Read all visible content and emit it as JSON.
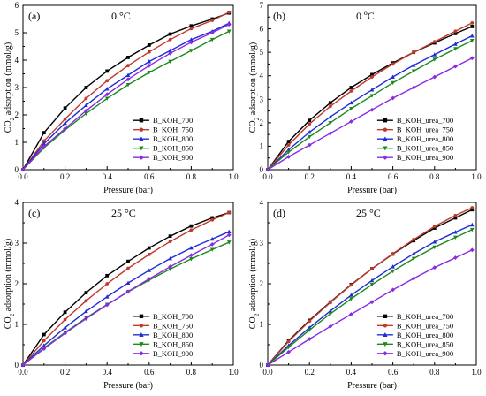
{
  "chart_data": [
    {
      "panel_label": "(a)",
      "title": "0 °C",
      "type": "line",
      "xlabel": "Pressure (bar)",
      "ylabel": "CO2 adsorption (mmol/g)",
      "ylabel_parts": [
        "CO",
        "2",
        " adsorption (mmol/g)"
      ],
      "xlim": [
        0,
        1.0
      ],
      "ylim": [
        0,
        6
      ],
      "xticks": [
        0.0,
        0.2,
        0.4,
        0.6,
        0.8,
        1.0
      ],
      "xtick_labels": [
        "0.0",
        "0.2",
        "0.4",
        "0.6",
        "0.8",
        "1.0"
      ],
      "yticks": [
        0,
        1,
        2,
        3,
        4,
        5,
        6
      ],
      "ytick_labels": [
        "0",
        "1",
        "2",
        "3",
        "4",
        "5",
        "6"
      ],
      "legend_position": "bottom-right",
      "x": [
        0,
        0.1,
        0.2,
        0.3,
        0.4,
        0.5,
        0.6,
        0.7,
        0.8,
        0.9,
        0.98
      ],
      "series": [
        {
          "name": "B_KOH_700",
          "color": "#000000",
          "marker": "square",
          "values": [
            0,
            1.35,
            2.25,
            3.0,
            3.6,
            4.1,
            4.55,
            4.95,
            5.25,
            5.5,
            5.72
          ]
        },
        {
          "name": "B_KOH_750",
          "color": "#c0392b",
          "marker": "circle",
          "values": [
            0,
            1.05,
            1.85,
            2.6,
            3.25,
            3.8,
            4.3,
            4.75,
            5.15,
            5.45,
            5.75
          ]
        },
        {
          "name": "B_KOH_800",
          "color": "#1f2bd6",
          "marker": "triangle-up",
          "values": [
            0,
            0.95,
            1.7,
            2.35,
            2.95,
            3.45,
            3.95,
            4.35,
            4.75,
            5.05,
            5.35
          ]
        },
        {
          "name": "B_KOH_850",
          "color": "#1a8a1a",
          "marker": "triangle-down",
          "values": [
            0,
            0.8,
            1.45,
            2.05,
            2.6,
            3.1,
            3.55,
            3.95,
            4.35,
            4.75,
            5.05
          ]
        },
        {
          "name": "B_KOH_900",
          "color": "#8a2be2",
          "marker": "diamond",
          "values": [
            0,
            0.85,
            1.5,
            2.15,
            2.75,
            3.3,
            3.8,
            4.25,
            4.65,
            5.0,
            5.3
          ]
        }
      ]
    },
    {
      "panel_label": "(b)",
      "title": "0 ºC",
      "type": "line",
      "xlabel": "Pressure (bar)",
      "ylabel": "CO2 adsorption (mmol/g)",
      "ylabel_parts": [
        "CO",
        "2",
        " adsorption (mmol/g)"
      ],
      "xlim": [
        0,
        1.0
      ],
      "ylim": [
        0,
        7
      ],
      "xticks": [
        0.0,
        0.2,
        0.4,
        0.6,
        0.8,
        1.0
      ],
      "xtick_labels": [
        "0.0",
        "0.2",
        "0.4",
        "0.6",
        "0.8",
        "1.0"
      ],
      "yticks": [
        0,
        1,
        2,
        3,
        4,
        5,
        6,
        7
      ],
      "ytick_labels": [
        "0",
        "1",
        "2",
        "3",
        "4",
        "5",
        "6",
        "7"
      ],
      "legend_position": "bottom-right",
      "x": [
        0,
        0.1,
        0.2,
        0.3,
        0.4,
        0.5,
        0.6,
        0.7,
        0.8,
        0.9,
        0.98
      ],
      "series": [
        {
          "name": "B_KOH_urea_700",
          "color": "#000000",
          "marker": "square",
          "values": [
            0,
            1.2,
            2.1,
            2.85,
            3.5,
            4.05,
            4.55,
            5.0,
            5.4,
            5.8,
            6.1
          ]
        },
        {
          "name": "B_KOH_urea_750",
          "color": "#c0392b",
          "marker": "circle",
          "values": [
            0,
            1.05,
            1.95,
            2.7,
            3.35,
            3.95,
            4.5,
            5.0,
            5.45,
            5.9,
            6.25
          ]
        },
        {
          "name": "B_KOH_urea_800",
          "color": "#1f2bd6",
          "marker": "triangle-up",
          "values": [
            0,
            0.85,
            1.6,
            2.25,
            2.85,
            3.4,
            3.95,
            4.45,
            4.9,
            5.35,
            5.7
          ]
        },
        {
          "name": "B_KOH_urea_850",
          "color": "#1a8a1a",
          "marker": "triangle-down",
          "values": [
            0,
            0.75,
            1.4,
            2.0,
            2.6,
            3.15,
            3.7,
            4.2,
            4.7,
            5.15,
            5.5
          ]
        },
        {
          "name": "B_KOH_urea_900",
          "color": "#8a2be2",
          "marker": "diamond",
          "values": [
            0,
            0.55,
            1.05,
            1.55,
            2.05,
            2.55,
            3.05,
            3.5,
            3.95,
            4.4,
            4.75
          ]
        }
      ]
    },
    {
      "panel_label": "(c)",
      "title": "25 °C",
      "type": "line",
      "xlabel": "Pressure (bar)",
      "ylabel": "CO2 adsorption (mmol/g)",
      "ylabel_parts": [
        "CO",
        "2",
        " adsorption (mmol/g)"
      ],
      "xlim": [
        0,
        1.0
      ],
      "ylim": [
        0,
        4
      ],
      "xticks": [
        0.0,
        0.2,
        0.4,
        0.6,
        0.8,
        1.0
      ],
      "xtick_labels": [
        "0.0",
        "0.2",
        "0.4",
        "0.6",
        "0.8",
        "1.0"
      ],
      "yticks": [
        0,
        1,
        2,
        3,
        4
      ],
      "ytick_labels": [
        "0",
        "1",
        "2",
        "3",
        "4"
      ],
      "legend_position": "bottom-right",
      "x": [
        0,
        0.1,
        0.2,
        0.3,
        0.4,
        0.5,
        0.6,
        0.7,
        0.8,
        0.9,
        0.98
      ],
      "series": [
        {
          "name": "B_KOH_700",
          "color": "#000000",
          "marker": "square",
          "values": [
            0,
            0.75,
            1.3,
            1.78,
            2.2,
            2.55,
            2.88,
            3.17,
            3.42,
            3.62,
            3.75
          ]
        },
        {
          "name": "B_KOH_750",
          "color": "#c0392b",
          "marker": "circle",
          "values": [
            0,
            0.6,
            1.12,
            1.58,
            2.0,
            2.38,
            2.72,
            3.04,
            3.32,
            3.57,
            3.75
          ]
        },
        {
          "name": "B_KOH_800",
          "color": "#1f2bd6",
          "marker": "triangle-up",
          "values": [
            0,
            0.48,
            0.92,
            1.32,
            1.68,
            2.02,
            2.33,
            2.62,
            2.88,
            3.1,
            3.28
          ]
        },
        {
          "name": "B_KOH_850",
          "color": "#1a8a1a",
          "marker": "triangle-down",
          "values": [
            0,
            0.42,
            0.8,
            1.16,
            1.49,
            1.8,
            2.09,
            2.36,
            2.61,
            2.84,
            3.02
          ]
        },
        {
          "name": "B_KOH_900",
          "color": "#8a2be2",
          "marker": "diamond",
          "values": [
            0,
            0.4,
            0.78,
            1.14,
            1.48,
            1.81,
            2.12,
            2.42,
            2.7,
            2.97,
            3.2
          ]
        }
      ]
    },
    {
      "panel_label": "(d)",
      "title": "25 °C",
      "type": "line",
      "xlabel": "Pressure (bar)",
      "ylabel": "CO2 adsorption (mmol/g)",
      "ylabel_parts": [
        "CO",
        "2",
        " adsorption (mmol/g)"
      ],
      "xlim": [
        0,
        1.0
      ],
      "ylim": [
        0,
        4
      ],
      "xticks": [
        0.0,
        0.2,
        0.4,
        0.6,
        0.8,
        1.0
      ],
      "xtick_labels": [
        "0.0",
        "0.2",
        "0.4",
        "0.6",
        "0.8",
        "1.0"
      ],
      "yticks": [
        0,
        1,
        2,
        3,
        4
      ],
      "ytick_labels": [
        "0",
        "1",
        "2",
        "3",
        "4"
      ],
      "legend_position": "bottom-right",
      "x": [
        0,
        0.1,
        0.2,
        0.3,
        0.4,
        0.5,
        0.6,
        0.7,
        0.8,
        0.9,
        0.98
      ],
      "series": [
        {
          "name": "B_KOH_urea_700",
          "color": "#000000",
          "marker": "square",
          "values": [
            0,
            0.6,
            1.1,
            1.55,
            1.98,
            2.37,
            2.73,
            3.06,
            3.37,
            3.62,
            3.82
          ]
        },
        {
          "name": "B_KOH_urea_750",
          "color": "#c0392b",
          "marker": "circle",
          "values": [
            0,
            0.58,
            1.08,
            1.54,
            1.97,
            2.37,
            2.74,
            3.09,
            3.41,
            3.68,
            3.87
          ]
        },
        {
          "name": "B_KOH_urea_800",
          "color": "#1f2bd6",
          "marker": "triangle-up",
          "values": [
            0,
            0.48,
            0.92,
            1.33,
            1.72,
            2.08,
            2.42,
            2.74,
            3.03,
            3.27,
            3.45
          ]
        },
        {
          "name": "B_KOH_urea_850",
          "color": "#1a8a1a",
          "marker": "triangle-down",
          "values": [
            0,
            0.44,
            0.86,
            1.26,
            1.63,
            1.98,
            2.31,
            2.62,
            2.9,
            3.14,
            3.33
          ]
        },
        {
          "name": "B_KOH_urea_900",
          "color": "#8a2be2",
          "marker": "diamond",
          "values": [
            0,
            0.32,
            0.64,
            0.95,
            1.25,
            1.55,
            1.85,
            2.13,
            2.4,
            2.64,
            2.83
          ]
        }
      ]
    }
  ]
}
